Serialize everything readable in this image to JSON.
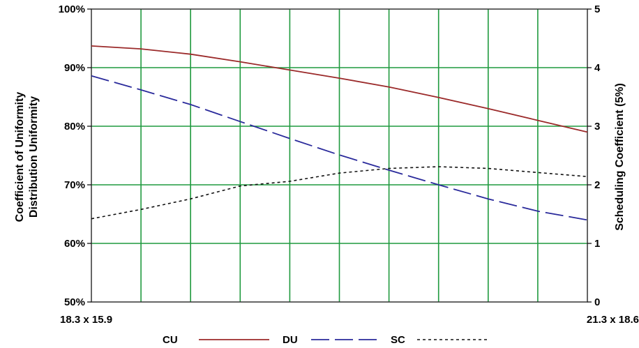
{
  "chart_data": {
    "type": "line",
    "x_range_labels": [
      "18.3 x 15.9",
      "21.3 x 18.6"
    ],
    "left_axis": {
      "labels": [
        "Coefficient of Uniformity",
        "Distribution Uniformity"
      ],
      "ylim": [
        50,
        100
      ],
      "ticks": [
        "50%",
        "60%",
        "70%",
        "80%",
        "90%",
        "100%"
      ]
    },
    "right_axis": {
      "label": "Scheduling Coefficient (5%)",
      "ylim": [
        0,
        5
      ],
      "ticks": [
        "0",
        "1",
        "2",
        "3",
        "4",
        "5"
      ]
    },
    "grid": true,
    "legend_position": "bottom",
    "x": [
      0,
      0.1,
      0.2,
      0.3,
      0.4,
      0.5,
      0.6,
      0.7,
      0.8,
      0.9,
      1.0
    ],
    "series": [
      {
        "name": "CU",
        "axis": "left",
        "color": "#9b2a2a",
        "style": "solid",
        "values": [
          93.7,
          93.2,
          92.3,
          91.0,
          89.6,
          88.2,
          86.7,
          84.9,
          83.0,
          81.0,
          79.0
        ]
      },
      {
        "name": "DU",
        "axis": "left",
        "color": "#2a2a9b",
        "style": "dash",
        "values": [
          88.6,
          86.2,
          83.7,
          80.8,
          77.9,
          75.1,
          72.5,
          70.0,
          67.6,
          65.5,
          64.0
        ]
      },
      {
        "name": "SC",
        "axis": "right",
        "color": "#111111",
        "style": "dot",
        "values": [
          1.42,
          1.58,
          1.76,
          1.98,
          2.06,
          2.2,
          2.28,
          2.31,
          2.28,
          2.21,
          2.14
        ]
      }
    ]
  },
  "colors": {
    "grid": "#1f9a3e",
    "frame": "#333333"
  }
}
